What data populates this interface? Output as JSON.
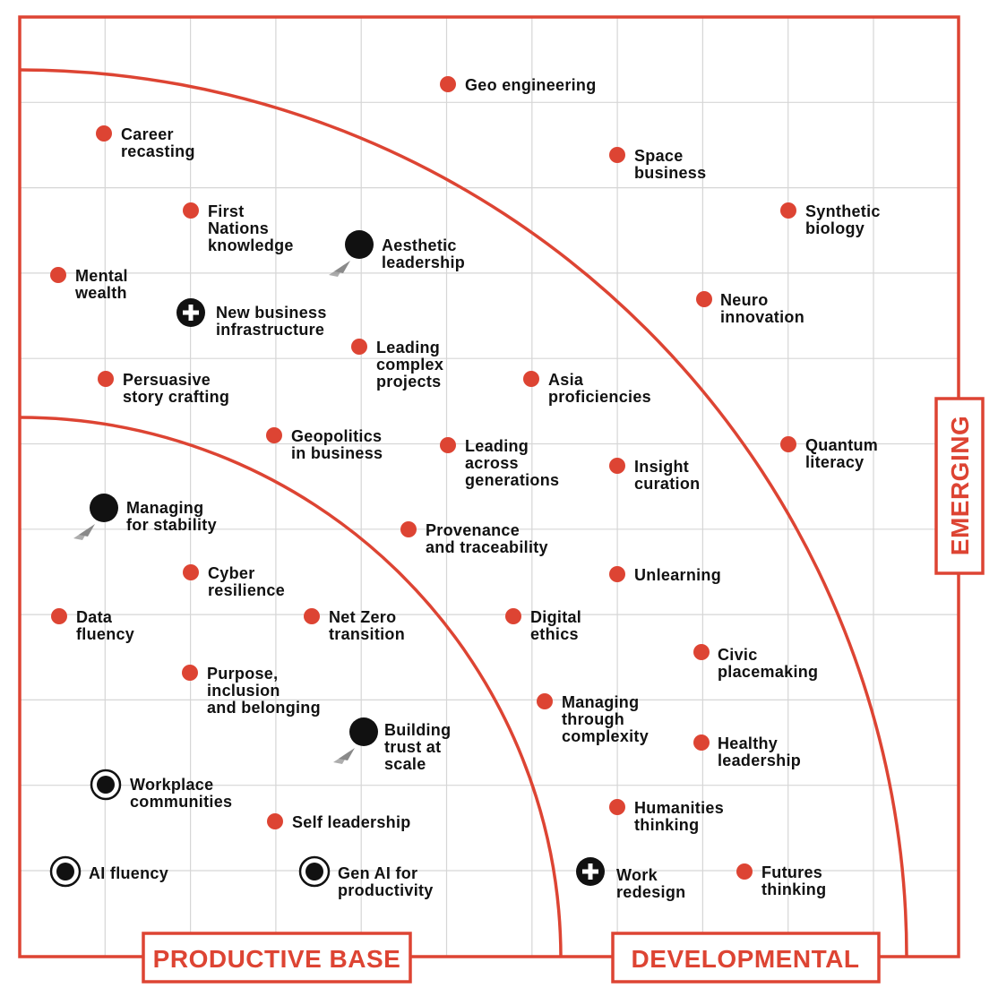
{
  "colors": {
    "accent": "#dd4433",
    "grid": "#d6d6d6",
    "marker_dark": "#111111",
    "arrow": "#8a8a8a"
  },
  "zones": {
    "productive_base": "PRODUCTIVE BASE",
    "developmental": "DEVELOPMENTAL",
    "emerging": "EMERGING"
  },
  "items": [
    {
      "id": "geo-engineering",
      "lines": [
        "Geo engineering"
      ],
      "marker": "dot"
    },
    {
      "id": "career-recasting",
      "lines": [
        "Career",
        "recasting"
      ],
      "marker": "dot"
    },
    {
      "id": "space-business",
      "lines": [
        "Space",
        "business"
      ],
      "marker": "dot"
    },
    {
      "id": "first-nations-knowledge",
      "lines": [
        "First",
        "Nations",
        "knowledge"
      ],
      "marker": "dot"
    },
    {
      "id": "synthetic-biology",
      "lines": [
        "Synthetic",
        "biology"
      ],
      "marker": "dot"
    },
    {
      "id": "aesthetic-leadership",
      "lines": [
        "Aesthetic",
        "leadership"
      ],
      "marker": "big-dot-arrow"
    },
    {
      "id": "mental-wealth",
      "lines": [
        "Mental",
        "wealth"
      ],
      "marker": "dot"
    },
    {
      "id": "neuro-innovation",
      "lines": [
        "Neuro",
        "innovation"
      ],
      "marker": "dot"
    },
    {
      "id": "new-business-infrastructure",
      "lines": [
        "New business",
        "infrastructure"
      ],
      "marker": "plus"
    },
    {
      "id": "leading-complex-projects",
      "lines": [
        "Leading",
        "complex",
        "projects"
      ],
      "marker": "dot"
    },
    {
      "id": "persuasive-story-crafting",
      "lines": [
        "Persuasive",
        "story crafting"
      ],
      "marker": "dot"
    },
    {
      "id": "asia-proficiencies",
      "lines": [
        "Asia",
        "proficiencies"
      ],
      "marker": "dot"
    },
    {
      "id": "geopolitics-in-business",
      "lines": [
        "Geopolitics",
        "in business"
      ],
      "marker": "dot"
    },
    {
      "id": "leading-across-generations",
      "lines": [
        "Leading",
        "across",
        "generations"
      ],
      "marker": "dot"
    },
    {
      "id": "quantum-literacy",
      "lines": [
        "Quantum",
        "literacy"
      ],
      "marker": "dot"
    },
    {
      "id": "insight-curation",
      "lines": [
        "Insight",
        "curation"
      ],
      "marker": "dot"
    },
    {
      "id": "managing-for-stability",
      "lines": [
        "Managing",
        "for stability"
      ],
      "marker": "big-dot-arrow"
    },
    {
      "id": "provenance-and-traceability",
      "lines": [
        "Provenance",
        "and traceability"
      ],
      "marker": "dot"
    },
    {
      "id": "cyber-resilience",
      "lines": [
        "Cyber",
        "resilience"
      ],
      "marker": "dot"
    },
    {
      "id": "unlearning",
      "lines": [
        "Unlearning"
      ],
      "marker": "dot"
    },
    {
      "id": "data-fluency",
      "lines": [
        "Data",
        "fluency"
      ],
      "marker": "dot"
    },
    {
      "id": "net-zero-transition",
      "lines": [
        "Net Zero",
        "transition"
      ],
      "marker": "dot"
    },
    {
      "id": "digital-ethics",
      "lines": [
        "Digital",
        "ethics"
      ],
      "marker": "dot"
    },
    {
      "id": "civic-placemaking",
      "lines": [
        "Civic",
        "placemaking"
      ],
      "marker": "dot"
    },
    {
      "id": "purpose-inclusion-belonging",
      "lines": [
        "Purpose,",
        "inclusion",
        "and belonging"
      ],
      "marker": "dot"
    },
    {
      "id": "managing-through-complexity",
      "lines": [
        "Managing",
        "through",
        "complexity"
      ],
      "marker": "dot"
    },
    {
      "id": "building-trust-at-scale",
      "lines": [
        "Building",
        "trust at",
        "scale"
      ],
      "marker": "big-dot-arrow"
    },
    {
      "id": "healthy-leadership",
      "lines": [
        "Healthy",
        "leadership"
      ],
      "marker": "dot"
    },
    {
      "id": "workplace-communities",
      "lines": [
        "Workplace",
        "communities"
      ],
      "marker": "ring"
    },
    {
      "id": "humanities-thinking",
      "lines": [
        "Humanities",
        "thinking"
      ],
      "marker": "dot"
    },
    {
      "id": "self-leadership",
      "lines": [
        "Self leadership"
      ],
      "marker": "dot"
    },
    {
      "id": "ai-fluency",
      "lines": [
        "AI fluency"
      ],
      "marker": "ring"
    },
    {
      "id": "gen-ai-for-productivity",
      "lines": [
        "Gen AI for",
        "productivity"
      ],
      "marker": "ring"
    },
    {
      "id": "work-redesign",
      "lines": [
        "Work",
        "redesign"
      ],
      "marker": "plus"
    },
    {
      "id": "futures-thinking",
      "lines": [
        "Futures",
        "thinking"
      ],
      "marker": "dot"
    }
  ]
}
